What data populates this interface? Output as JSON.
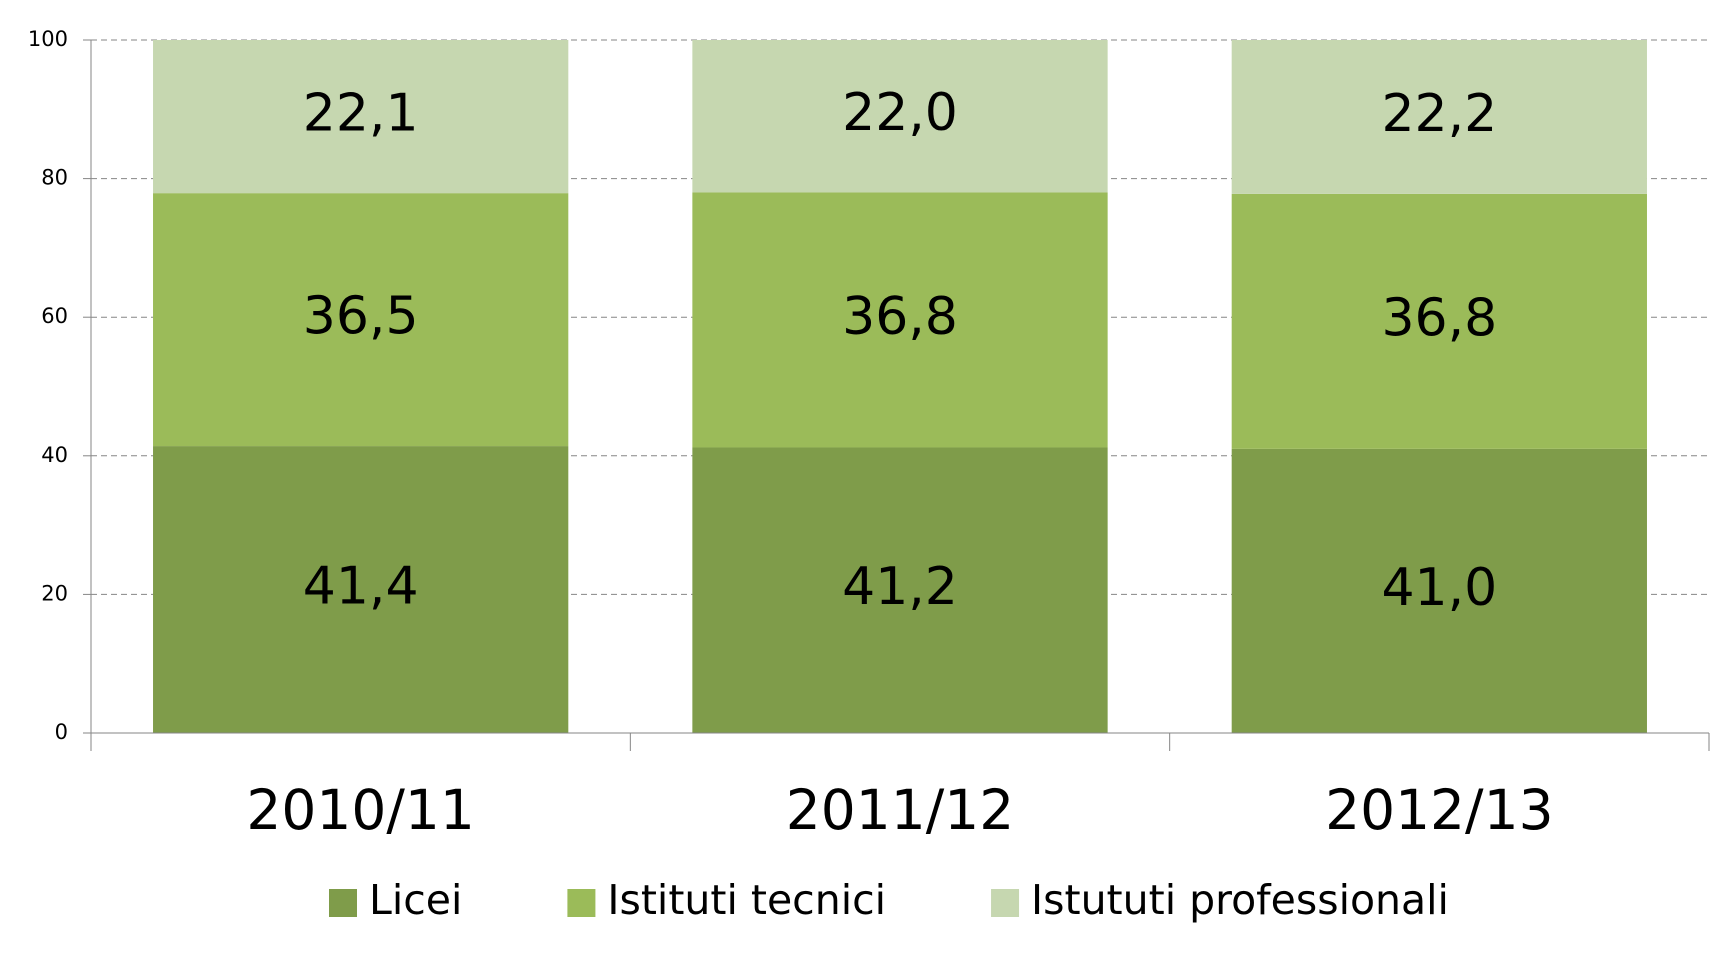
{
  "chart_data": {
    "type": "stacked_bar",
    "categories": [
      "2010/11",
      "2011/12",
      "2012/13"
    ],
    "series": [
      {
        "name": "Licei",
        "color": "#7f9c4a",
        "values": [
          41.4,
          41.2,
          41.0
        ],
        "value_labels": [
          "41,4",
          "41,2",
          "41,0"
        ]
      },
      {
        "name": "Istituti tecnici",
        "color": "#9bbb59",
        "values": [
          36.5,
          36.8,
          36.8
        ],
        "value_labels": [
          "36,5",
          "36,8",
          "36,8"
        ]
      },
      {
        "name": "Istututi professionali",
        "color": "#c6d7b0",
        "values": [
          22.1,
          22.0,
          22.2
        ],
        "value_labels": [
          "22,1",
          "22,0",
          "22,2"
        ]
      }
    ],
    "ylim": [
      0,
      100
    ],
    "yticks": [
      0,
      20,
      40,
      60,
      80,
      100
    ],
    "grid": true,
    "legend": "bottom"
  }
}
